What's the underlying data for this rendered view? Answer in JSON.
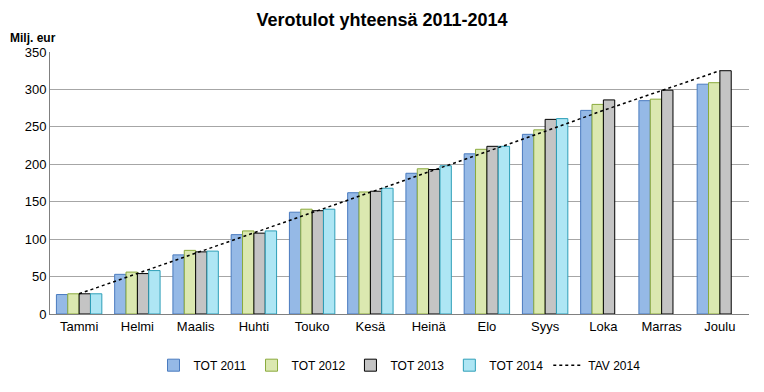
{
  "chart_data": {
    "type": "bar",
    "title": "Verotulot yhteensä 2011-2014",
    "ylabel": "Milj. eur",
    "categories": [
      "Tammi",
      "Helmi",
      "Maalis",
      "Huhti",
      "Touko",
      "Kesä",
      "Heinä",
      "Elo",
      "Syys",
      "Loka",
      "Marras",
      "Joulu"
    ],
    "series": [
      {
        "name": "TOT 2011",
        "type": "bar",
        "color": "#95b9e6",
        "values": [
          26,
          53,
          79,
          106,
          136,
          162,
          188,
          214,
          240,
          272,
          285,
          307
        ]
      },
      {
        "name": "TOT 2012",
        "type": "bar",
        "color": "#dbe8b0",
        "values": [
          27,
          56,
          85,
          111,
          140,
          163,
          194,
          220,
          246,
          280,
          287,
          309
        ]
      },
      {
        "name": "TOT 2013",
        "type": "bar",
        "color": "#c4c4c4",
        "values": [
          27,
          54,
          83,
          108,
          138,
          164,
          193,
          224,
          260,
          286,
          299,
          325
        ]
      },
      {
        "name": "TOT 2014",
        "type": "bar",
        "color": "#aee6f4",
        "values": [
          27,
          58,
          84,
          111,
          140,
          168,
          198,
          224,
          261,
          null,
          null,
          null
        ]
      },
      {
        "name": "TAV 2014",
        "type": "line",
        "color": "#000000",
        "line_style": "dotted",
        "values": [
          27,
          54,
          82,
          109,
          136,
          163,
          190,
          217,
          244,
          272,
          298,
          325
        ]
      }
    ],
    "ylim": [
      0,
      350
    ],
    "yticks": [
      0,
      50,
      100,
      150,
      200,
      250,
      300,
      350
    ],
    "grid": true,
    "legend": "bottom"
  }
}
